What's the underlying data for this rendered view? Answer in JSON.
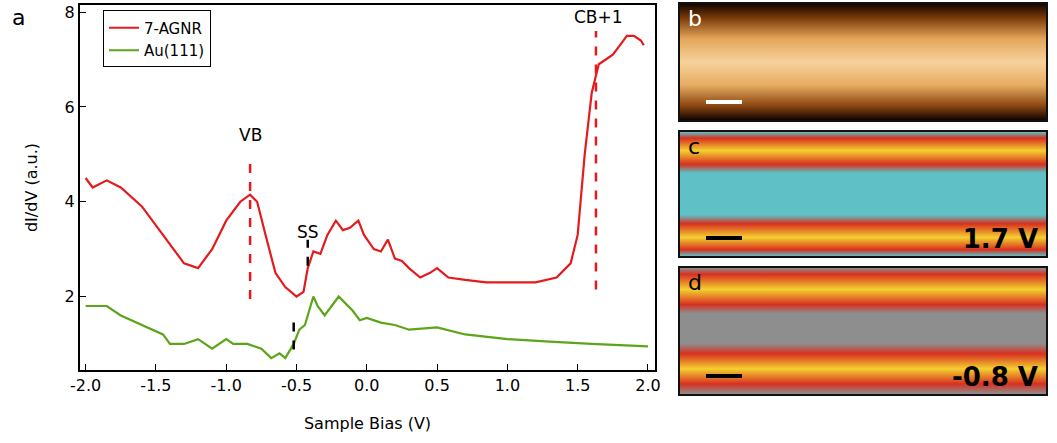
{
  "chart_data": {
    "type": "line",
    "panel_letter": "a",
    "x_label": "Sample Bias (V)",
    "y_label": "dI/dV (a.u.)",
    "xlim": [
      -2.04,
      2.05
    ],
    "ylim": [
      0.45,
      8.15
    ],
    "xticks": [
      {
        "value": -2,
        "label": "-2.0"
      },
      {
        "value": -1.5,
        "label": "-1.5"
      },
      {
        "value": -1,
        "label": "-1.0"
      },
      {
        "value": -0.5,
        "label": "-0.5"
      },
      {
        "value": 0,
        "label": "0.0"
      },
      {
        "value": 0.5,
        "label": "0.5"
      },
      {
        "value": 1,
        "label": "1.0"
      },
      {
        "value": 1.5,
        "label": "1.5"
      },
      {
        "value": 2,
        "label": "2.0"
      }
    ],
    "yticks": [
      2,
      4,
      6,
      8
    ],
    "grid": false,
    "legend": "upper left",
    "series": [
      {
        "name": "7-AGNR",
        "color": "#e41a1c",
        "x": [
          -2.0,
          -1.95,
          -1.85,
          -1.75,
          -1.6,
          -1.45,
          -1.3,
          -1.2,
          -1.1,
          -1.0,
          -0.9,
          -0.83,
          -0.78,
          -0.72,
          -0.65,
          -0.58,
          -0.5,
          -0.45,
          -0.42,
          -0.38,
          -0.33,
          -0.28,
          -0.22,
          -0.17,
          -0.12,
          -0.06,
          -0.02,
          0.05,
          0.1,
          0.15,
          0.2,
          0.25,
          0.3,
          0.38,
          0.45,
          0.5,
          0.58,
          0.7,
          0.85,
          1.0,
          1.2,
          1.35,
          1.45,
          1.5,
          1.55,
          1.6,
          1.65,
          1.7,
          1.75,
          1.8,
          1.85,
          1.9,
          1.95,
          1.97
        ],
        "values": [
          4.5,
          4.3,
          4.45,
          4.3,
          3.9,
          3.3,
          2.7,
          2.6,
          3.0,
          3.6,
          4.0,
          4.15,
          4.0,
          3.3,
          2.5,
          2.2,
          2.0,
          2.1,
          2.6,
          2.95,
          2.9,
          3.3,
          3.6,
          3.4,
          3.45,
          3.6,
          3.3,
          3.0,
          2.95,
          3.2,
          2.8,
          2.75,
          2.6,
          2.4,
          2.5,
          2.6,
          2.4,
          2.35,
          2.3,
          2.3,
          2.3,
          2.4,
          2.7,
          3.3,
          5.0,
          6.3,
          6.9,
          7.0,
          7.1,
          7.3,
          7.5,
          7.5,
          7.4,
          7.3
        ]
      },
      {
        "name": "Au(111)",
        "color": "#5ca418",
        "x": [
          -2.0,
          -1.9,
          -1.85,
          -1.75,
          -1.6,
          -1.45,
          -1.4,
          -1.3,
          -1.2,
          -1.1,
          -1.0,
          -0.95,
          -0.85,
          -0.75,
          -0.68,
          -0.62,
          -0.58,
          -0.52,
          -0.48,
          -0.44,
          -0.42,
          -0.38,
          -0.35,
          -0.3,
          -0.25,
          -0.2,
          -0.15,
          -0.1,
          -0.05,
          0.0,
          0.1,
          0.2,
          0.3,
          0.5,
          0.7,
          1.0,
          1.3,
          1.6,
          2.0
        ],
        "values": [
          1.8,
          1.8,
          1.8,
          1.6,
          1.4,
          1.2,
          1.0,
          1.0,
          1.1,
          0.9,
          1.1,
          1.0,
          1.0,
          0.9,
          0.7,
          0.8,
          0.7,
          1.0,
          1.3,
          1.4,
          1.6,
          2.0,
          1.8,
          1.6,
          1.8,
          2.0,
          1.85,
          1.7,
          1.5,
          1.55,
          1.45,
          1.4,
          1.3,
          1.35,
          1.2,
          1.1,
          1.05,
          1.0,
          0.95
        ]
      }
    ],
    "annotations": [
      {
        "text": "VB",
        "x": -0.83,
        "y": 5.4
      },
      {
        "text": "SS",
        "x": -0.42,
        "y": 3.37
      },
      {
        "text": "CB+1",
        "x": 1.65,
        "y": 7.9
      }
    ],
    "marker_lines": [
      {
        "x": -0.83,
        "y0": 1.95,
        "y1": 4.9,
        "color": "#e41a1c"
      },
      {
        "x": 1.63,
        "y0": 2.15,
        "y1": 7.6,
        "color": "#e41a1c"
      },
      {
        "x": -0.42,
        "y0": 2.65,
        "y1": 3.2,
        "color": "#000000"
      },
      {
        "x": -0.52,
        "y0": 0.88,
        "y1": 1.56,
        "color": "#000000"
      }
    ]
  },
  "images": [
    {
      "letter": "b",
      "style": "topography"
    },
    {
      "letter": "c",
      "label": "1.7 V",
      "style": "cyan"
    },
    {
      "letter": "d",
      "label": "-0.8 V",
      "style": "gray"
    }
  ]
}
